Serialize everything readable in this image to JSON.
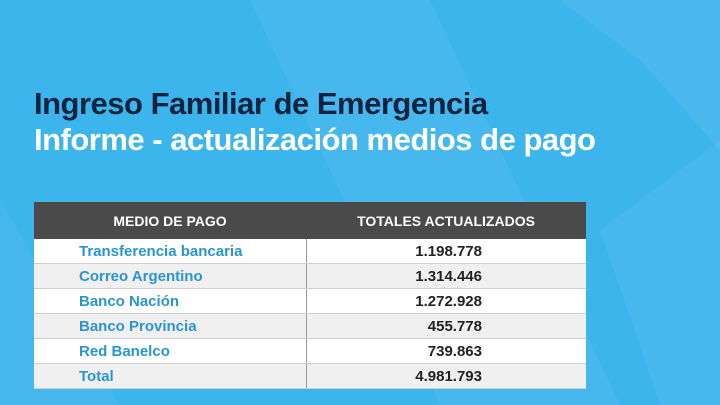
{
  "colors": {
    "background": "#3cb4ec",
    "title_dark": "#0f2340",
    "title_light": "#ffffff",
    "header_bg": "#4a4a4a",
    "method_text": "#2a95cf"
  },
  "title": {
    "line1": "Ingreso Familiar de Emergencia",
    "line2": "Informe - actualización medios de pago"
  },
  "table": {
    "headers": [
      "MEDIO DE PAGO",
      "TOTALES ACTUALIZADOS"
    ],
    "rows": [
      {
        "method": "Transferencia bancaria",
        "total": "1.198.778"
      },
      {
        "method": "Correo Argentino",
        "total": "1.314.446"
      },
      {
        "method": "Banco Nación",
        "total": "1.272.928"
      },
      {
        "method": "Banco Provincia",
        "total": "455.778"
      },
      {
        "method": "Red Banelco",
        "total": "739.863"
      },
      {
        "method": "Total",
        "total": "4.981.793"
      }
    ]
  }
}
